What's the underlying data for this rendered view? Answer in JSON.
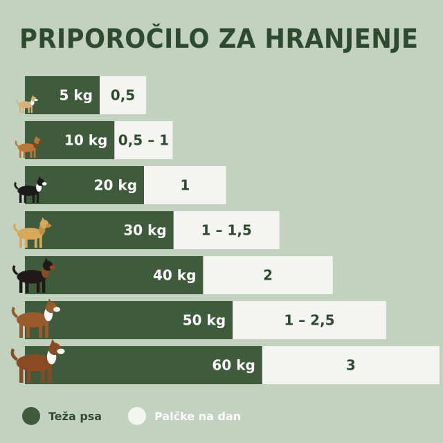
{
  "chart_data": {
    "type": "bar",
    "title": "PRIPOROČILO ZA HRANJENJE",
    "categories": [
      "5 kg",
      "10 kg",
      "20 kg",
      "30 kg",
      "40 kg",
      "50 kg",
      "60 kg"
    ],
    "weights": [
      5,
      10,
      20,
      30,
      40,
      50,
      60
    ],
    "portions": [
      "0,5",
      "0,5 – 1",
      "1",
      "1 – 1,5",
      "2",
      "1 – 2,5",
      "3"
    ],
    "dog_icons": [
      "chihuahua-icon",
      "small-terrier-icon",
      "border-collie-icon",
      "golden-retriever-icon",
      "rottweiler-icon",
      "boxer-icon",
      "saint-bernard-icon"
    ],
    "series": [
      {
        "name": "Teža psa",
        "values": [
          5,
          10,
          20,
          30,
          40,
          50,
          60
        ]
      },
      {
        "name": "Palčke na dan",
        "values": [
          0.5,
          1,
          1,
          1.5,
          2,
          2.5,
          3
        ]
      }
    ],
    "legend": {
      "placement": "bottom-left",
      "items": [
        {
          "label": "Teža psa",
          "color": "#3e5b3b"
        },
        {
          "label": "Palčke na dan",
          "color": "#f4f4f1"
        }
      ]
    },
    "colors": {
      "background": "#c3d2bf",
      "weight_bar": "#3e5b3b",
      "portion_bar": "#f4f4f1",
      "title": "#2e4a2f"
    }
  }
}
